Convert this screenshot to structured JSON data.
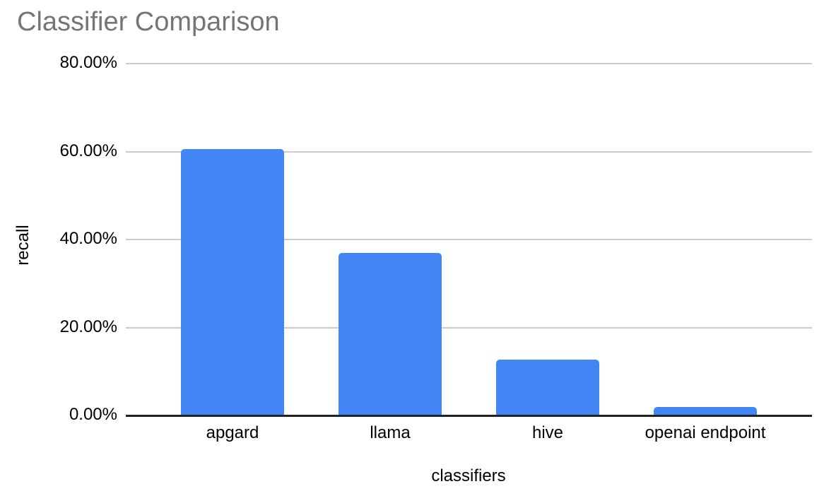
{
  "chart_data": {
    "type": "bar",
    "title": "Classifier Comparison",
    "xlabel": "classifiers",
    "ylabel": "recall",
    "categories": [
      "apgard",
      "llama",
      "hive",
      "openai endpoint"
    ],
    "values": [
      60.5,
      36.9,
      12.7,
      1.9
    ],
    "value_unit": "percent",
    "ylim": [
      0,
      80
    ],
    "yticks": [
      0,
      20,
      40,
      60,
      80
    ],
    "ytick_labels": [
      "0.00%",
      "20.00%",
      "40.00%",
      "60.00%",
      "80.00%"
    ],
    "grid": "horizontal",
    "legend": "none",
    "colors": {
      "bar": "#4285f4",
      "title_text": "#757575",
      "axis_text": "#000000",
      "gridline": "#cccccc",
      "axis_line": "#212121",
      "background": "#ffffff"
    }
  }
}
